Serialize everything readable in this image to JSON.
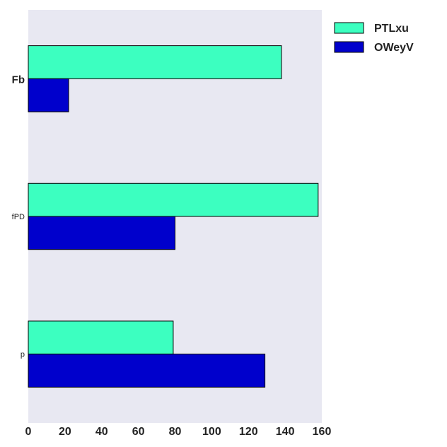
{
  "chart_data": {
    "type": "bar",
    "orientation": "horizontal",
    "categories": [
      "Fb",
      "fPD",
      "p"
    ],
    "category_label_styles": [
      "bold-large",
      "normal-small",
      "normal-small"
    ],
    "series": [
      {
        "name": "PTLxu",
        "color": "#3cffc0",
        "values": [
          138,
          158,
          79
        ]
      },
      {
        "name": "OWeyV",
        "color": "#0000cc",
        "values": [
          22,
          80,
          129
        ]
      }
    ],
    "x_ticks": [
      "0",
      "20",
      "40",
      "60",
      "80",
      "100",
      "120",
      "140",
      "160"
    ],
    "xlim": [
      0,
      160
    ],
    "title": "",
    "xlabel": "",
    "ylabel": "",
    "grid": false,
    "legend_position": "top-right",
    "plot_background": "#e8e8f2"
  }
}
